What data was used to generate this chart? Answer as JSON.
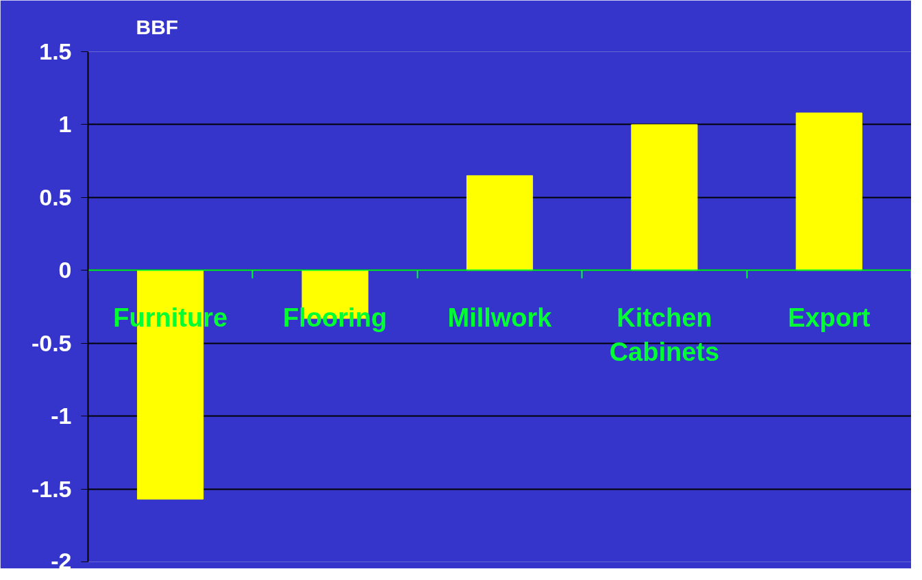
{
  "chart_data": {
    "type": "bar",
    "title": "BBF",
    "categories": [
      "Furniture",
      "Flooring",
      "Millwork",
      "Kitchen\nCabinets",
      "Export"
    ],
    "values": [
      -1.57,
      -0.33,
      0.65,
      1.0,
      1.08
    ],
    "color": "#ffff00",
    "ylim": [
      -2,
      1.5
    ],
    "yticks": [
      -2,
      -1.5,
      -1,
      -0.5,
      0,
      0.5,
      1,
      1.5
    ],
    "grid": "y"
  }
}
